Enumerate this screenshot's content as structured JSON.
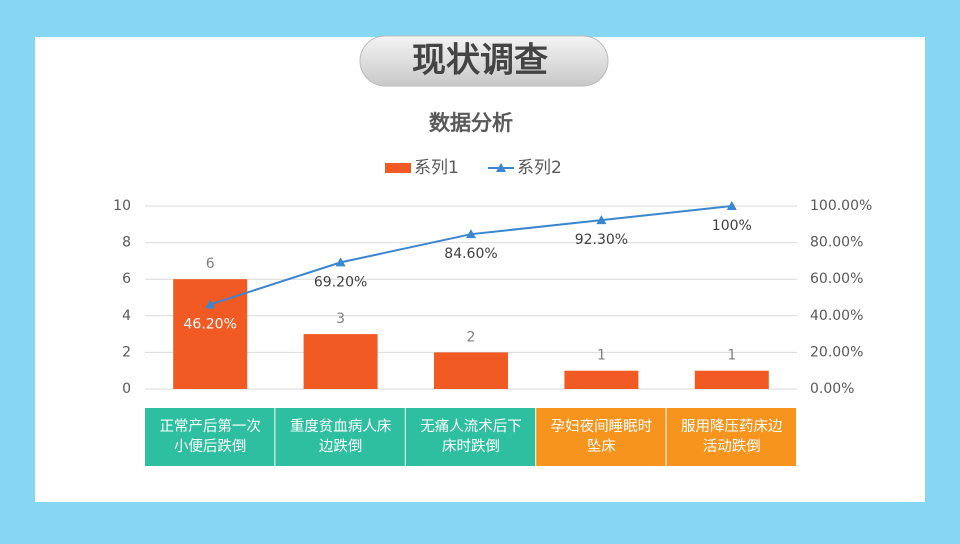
{
  "header": {
    "title": "现状调查"
  },
  "chart_data": {
    "type": "bar-line",
    "title": "数据分析",
    "categories": [
      "正常产后第一次小便后跌倒",
      "重度贫血病人床边跌倒",
      "无痛人流术后下床时跌倒",
      "孕妇夜间睡眠时坠床",
      "服用降压药床边活动跌倒"
    ],
    "category_colors": [
      "#2dbf9f",
      "#2dbf9f",
      "#2dbf9f",
      "#f7941d",
      "#f7941d"
    ],
    "series": [
      {
        "name": "系列1",
        "type": "bar",
        "color": "#f15a22",
        "values": [
          6,
          3,
          2,
          1,
          1
        ]
      },
      {
        "name": "系列2",
        "type": "line",
        "axis": "y2",
        "color": "#3a86d0",
        "values": [
          46.2,
          69.2,
          84.6,
          92.3,
          100
        ],
        "value_labels": [
          "46.20%",
          "69.20%",
          "84.60%",
          "92.30%",
          "100%"
        ]
      }
    ],
    "ylim": [
      0,
      10
    ],
    "yticks": [
      0,
      2,
      4,
      6,
      8,
      10
    ],
    "y2lim": [
      0,
      100
    ],
    "y2ticks": [
      {
        "value": 0,
        "label": "0.00%"
      },
      {
        "value": 20,
        "label": "20.00%"
      },
      {
        "value": 40,
        "label": "40.00%"
      },
      {
        "value": 60,
        "label": "60.00%"
      },
      {
        "value": 80,
        "label": "80.00%"
      },
      {
        "value": 100,
        "label": "100.00%"
      }
    ],
    "grid": true,
    "legend": "top"
  }
}
